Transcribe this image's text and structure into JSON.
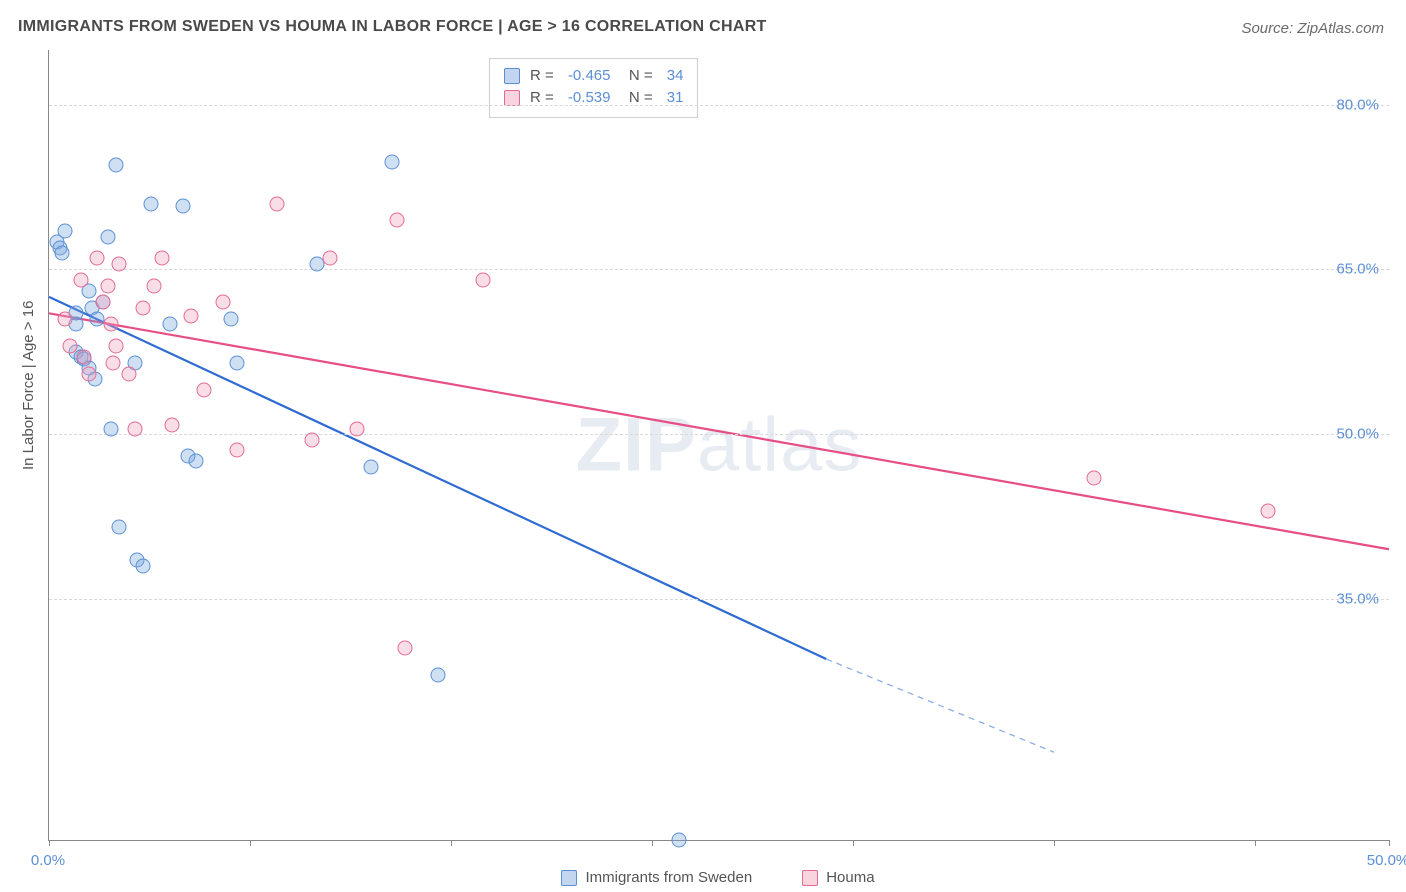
{
  "title": "IMMIGRANTS FROM SWEDEN VS HOUMA IN LABOR FORCE | AGE > 16 CORRELATION CHART",
  "source": "Source: ZipAtlas.com",
  "ylabel": "In Labor Force | Age > 16",
  "watermark_bold": "ZIP",
  "watermark_rest": "atlas",
  "chart": {
    "type": "scatter-with-regression",
    "xlim": [
      0,
      50
    ],
    "ylim": [
      13,
      85
    ],
    "xticks": [
      0,
      7.5,
      15,
      22.5,
      30,
      37.5,
      45,
      50
    ],
    "xtick_labels": {
      "0": "0.0%",
      "50": "50.0%"
    },
    "yticks": [
      35,
      50,
      65,
      80
    ],
    "ytick_labels": [
      "35.0%",
      "50.0%",
      "65.0%",
      "80.0%"
    ],
    "grid_color": "#d8d8d8",
    "background": "#ffffff",
    "series": [
      {
        "name": "Immigrants from Sweden",
        "color_fill": "rgba(120,165,220,0.35)",
        "color_stroke": "#5b8fd6",
        "marker_radius": 7.5,
        "R": -0.465,
        "N": 34,
        "regression": {
          "x1": 0,
          "y1": 62.5,
          "x2": 29,
          "y2": 29.5,
          "extend_x2": 37.5,
          "extend_y2": 21,
          "stroke": "#2e6bd3",
          "width": 2.2
        },
        "points": [
          [
            0.3,
            67.5
          ],
          [
            0.4,
            67.0
          ],
          [
            0.5,
            66.5
          ],
          [
            0.6,
            68.5
          ],
          [
            1.0,
            60.0
          ],
          [
            1.0,
            61.0
          ],
          [
            1.0,
            57.5
          ],
          [
            1.2,
            57.0
          ],
          [
            1.3,
            56.8
          ],
          [
            1.5,
            56.0
          ],
          [
            1.5,
            63.0
          ],
          [
            1.6,
            61.5
          ],
          [
            1.7,
            55.0
          ],
          [
            1.8,
            60.5
          ],
          [
            2.0,
            62.0
          ],
          [
            2.2,
            68.0
          ],
          [
            2.3,
            50.5
          ],
          [
            2.5,
            74.5
          ],
          [
            2.6,
            41.5
          ],
          [
            3.2,
            56.5
          ],
          [
            3.3,
            38.5
          ],
          [
            3.5,
            38.0
          ],
          [
            3.8,
            71.0
          ],
          [
            4.5,
            60.0
          ],
          [
            5.0,
            70.8
          ],
          [
            5.2,
            48.0
          ],
          [
            5.5,
            47.5
          ],
          [
            6.8,
            60.5
          ],
          [
            7.0,
            56.5
          ],
          [
            10.0,
            65.5
          ],
          [
            12.8,
            74.8
          ],
          [
            12.0,
            47.0
          ],
          [
            14.5,
            28.0
          ],
          [
            23.5,
            13.0
          ]
        ]
      },
      {
        "name": "Houma",
        "color_fill": "rgba(240,160,185,0.35)",
        "color_stroke": "#e46a94",
        "marker_radius": 7.5,
        "R": -0.539,
        "N": 31,
        "regression": {
          "x1": 0,
          "y1": 61.0,
          "x2": 50,
          "y2": 39.5,
          "stroke": "#e74e86",
          "width": 2.2
        },
        "points": [
          [
            0.6,
            60.5
          ],
          [
            0.8,
            58.0
          ],
          [
            1.2,
            64.0
          ],
          [
            1.3,
            57.0
          ],
          [
            1.5,
            55.5
          ],
          [
            1.8,
            66.0
          ],
          [
            2.0,
            62.0
          ],
          [
            2.2,
            63.5
          ],
          [
            2.3,
            60.0
          ],
          [
            2.4,
            56.5
          ],
          [
            2.5,
            58.0
          ],
          [
            2.6,
            65.5
          ],
          [
            3.0,
            55.5
          ],
          [
            3.2,
            50.5
          ],
          [
            3.5,
            61.5
          ],
          [
            3.9,
            63.5
          ],
          [
            4.2,
            66.0
          ],
          [
            4.6,
            50.8
          ],
          [
            5.3,
            60.8
          ],
          [
            5.8,
            54.0
          ],
          [
            6.5,
            62.0
          ],
          [
            7.0,
            48.5
          ],
          [
            8.5,
            71.0
          ],
          [
            9.8,
            49.5
          ],
          [
            10.5,
            66.0
          ],
          [
            11.5,
            50.5
          ],
          [
            13.0,
            69.5
          ],
          [
            13.3,
            30.5
          ],
          [
            16.2,
            64.0
          ],
          [
            39.0,
            46.0
          ],
          [
            45.5,
            43.0
          ]
        ]
      }
    ],
    "legend_bottom": [
      {
        "swatch": "sw-blue",
        "label": "Immigrants from Sweden"
      },
      {
        "swatch": "sw-pink",
        "label": "Houma"
      }
    ]
  }
}
